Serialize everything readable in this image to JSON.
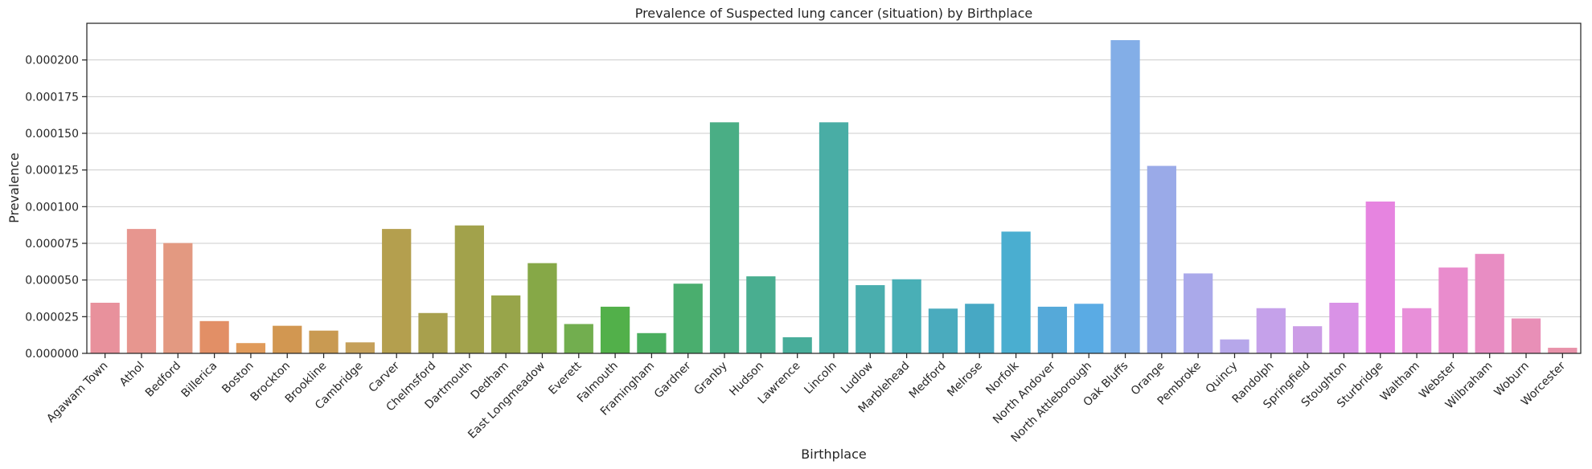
{
  "chart_data": {
    "type": "bar",
    "title": "Prevalence of Suspected lung cancer (situation) by Birthplace",
    "xlabel": "Birthplace",
    "ylabel": "Prevalence",
    "ylim": [
      0,
      0.000225
    ],
    "yticks": [
      0,
      2.5e-05,
      5e-05,
      7.5e-05,
      0.0001,
      0.000125,
      0.00015,
      0.000175,
      0.0002
    ],
    "ytick_labels": [
      "0.000000",
      "0.000025",
      "0.000050",
      "0.000075",
      "0.000100",
      "0.000125",
      "0.000150",
      "0.000175",
      "0.000200"
    ],
    "grid": "horizontal",
    "categories": [
      "Agawam Town",
      "Athol",
      "Bedford",
      "Billerica",
      "Boston",
      "Brockton",
      "Brookline",
      "Cambridge",
      "Carver",
      "Chelmsford",
      "Dartmouth",
      "Dedham",
      "East Longmeadow",
      "Everett",
      "Falmouth",
      "Framingham",
      "Gardner",
      "Granby",
      "Hudson",
      "Lawrence",
      "Lincoln",
      "Ludlow",
      "Marblehead",
      "Medford",
      "Melrose",
      "Norfolk",
      "North Andover",
      "North Attleborough",
      "Oak Bluffs",
      "Orange",
      "Pembroke",
      "Quincy",
      "Randolph",
      "Springfield",
      "Stoughton",
      "Sturbridge",
      "Waltham",
      "Webster",
      "Wilbraham",
      "Woburn",
      "Worcester"
    ],
    "values": [
      3.45e-05,
      8.48e-05,
      7.52e-05,
      2.2e-05,
      7e-06,
      1.88e-05,
      1.55e-05,
      7.5e-06,
      8.48e-05,
      2.75e-05,
      8.72e-05,
      3.95e-05,
      6.15e-05,
      2e-05,
      3.18e-05,
      1.38e-05,
      4.75e-05,
      0.0001575,
      5.25e-05,
      1.1e-05,
      0.0001575,
      4.65e-05,
      5.05e-05,
      3.05e-05,
      3.38e-05,
      8.3e-05,
      3.18e-05,
      3.38e-05,
      0.0002135,
      0.0001278,
      5.45e-05,
      9.5e-06,
      3.08e-05,
      1.85e-05,
      3.45e-05,
      0.0001035,
      3.08e-05,
      5.85e-05,
      6.78e-05,
      2.38e-05,
      3.8e-06
    ],
    "colors": [
      "#e8919c",
      "#e7968f",
      "#e39981",
      "#e28f66",
      "#e09a5a",
      "#d29751",
      "#c99a52",
      "#c5a05a",
      "#b49f4e",
      "#a8a04d",
      "#a2a24b",
      "#98a54a",
      "#86a847",
      "#72ae4f",
      "#52b04a",
      "#4aae5e",
      "#4aae6e",
      "#4aae85",
      "#49ae90",
      "#48ad9a",
      "#49ada5",
      "#4aaeae",
      "#49afb6",
      "#4aabbe",
      "#47a8c4",
      "#4aaed0",
      "#55a9d9",
      "#5aabe4",
      "#83aee7",
      "#9aaae8",
      "#aaa9ea",
      "#b6a7ea",
      "#c5a1ea",
      "#cc9de6",
      "#d992e6",
      "#e684e0",
      "#e88fd9",
      "#e98ccd",
      "#e88dc3",
      "#e88fb7",
      "#e892aa"
    ]
  }
}
